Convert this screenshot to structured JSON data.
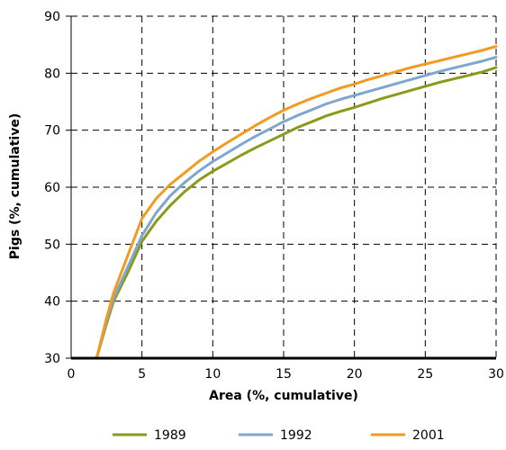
{
  "chart_data": {
    "type": "line",
    "xlabel": "Area (%, cumulative)",
    "ylabel": "Pigs (%, cumulative)",
    "xlim": [
      0,
      30
    ],
    "ylim": [
      30,
      90
    ],
    "xticks": [
      "0",
      "5",
      "10",
      "15",
      "20",
      "25",
      "30"
    ],
    "yticks": [
      "30",
      "40",
      "50",
      "60",
      "70",
      "80",
      "90"
    ],
    "grid": "dashed",
    "legend_position": "bottom",
    "series": [
      {
        "name": "1989",
        "color": "#8a9a1b",
        "x": [
          1.8,
          2.5,
          3,
          4,
          5,
          6,
          7,
          8,
          9,
          10,
          11,
          12,
          13,
          14,
          15,
          16,
          17,
          18,
          19,
          20,
          21,
          22,
          23,
          24,
          25,
          26,
          27,
          28,
          29,
          30
        ],
        "y": [
          30,
          36,
          40,
          45,
          50.5,
          54,
          56.8,
          59.2,
          61.2,
          62.8,
          64.2,
          65.6,
          66.9,
          68.1,
          69.3,
          70.5,
          71.5,
          72.5,
          73.3,
          74,
          74.8,
          75.6,
          76.3,
          77,
          77.7,
          78.4,
          79,
          79.6,
          80.2,
          81
        ]
      },
      {
        "name": "1992",
        "color": "#7da7cf",
        "x": [
          1.8,
          2.5,
          3,
          4,
          5,
          6,
          7,
          8,
          9,
          10,
          11,
          12,
          13,
          14,
          15,
          16,
          17,
          18,
          19,
          20,
          21,
          22,
          23,
          24,
          25,
          26,
          27,
          28,
          29,
          30
        ],
        "y": [
          30,
          36.5,
          40.5,
          46,
          51.5,
          55.5,
          58.5,
          60.8,
          62.8,
          64.5,
          66,
          67.5,
          68.9,
          70.2,
          71.5,
          72.6,
          73.6,
          74.6,
          75.4,
          76.1,
          76.8,
          77.5,
          78.2,
          78.9,
          79.6,
          80.3,
          80.9,
          81.5,
          82.1,
          82.8
        ]
      },
      {
        "name": "2001",
        "color": "#f39a20",
        "x": [
          1.8,
          2.5,
          3,
          4,
          5,
          6,
          7,
          8,
          9,
          10,
          11,
          12,
          13,
          14,
          15,
          16,
          17,
          18,
          19,
          20,
          21,
          22,
          23,
          24,
          25,
          26,
          27,
          28,
          29,
          30
        ],
        "y": [
          30,
          37,
          41.5,
          48,
          54.5,
          58,
          60.5,
          62.5,
          64.5,
          66.2,
          67.8,
          69.3,
          70.8,
          72.2,
          73.5,
          74.6,
          75.6,
          76.5,
          77.4,
          78.1,
          78.9,
          79.6,
          80.3,
          81,
          81.6,
          82.2,
          82.8,
          83.4,
          84,
          84.7
        ]
      }
    ]
  }
}
